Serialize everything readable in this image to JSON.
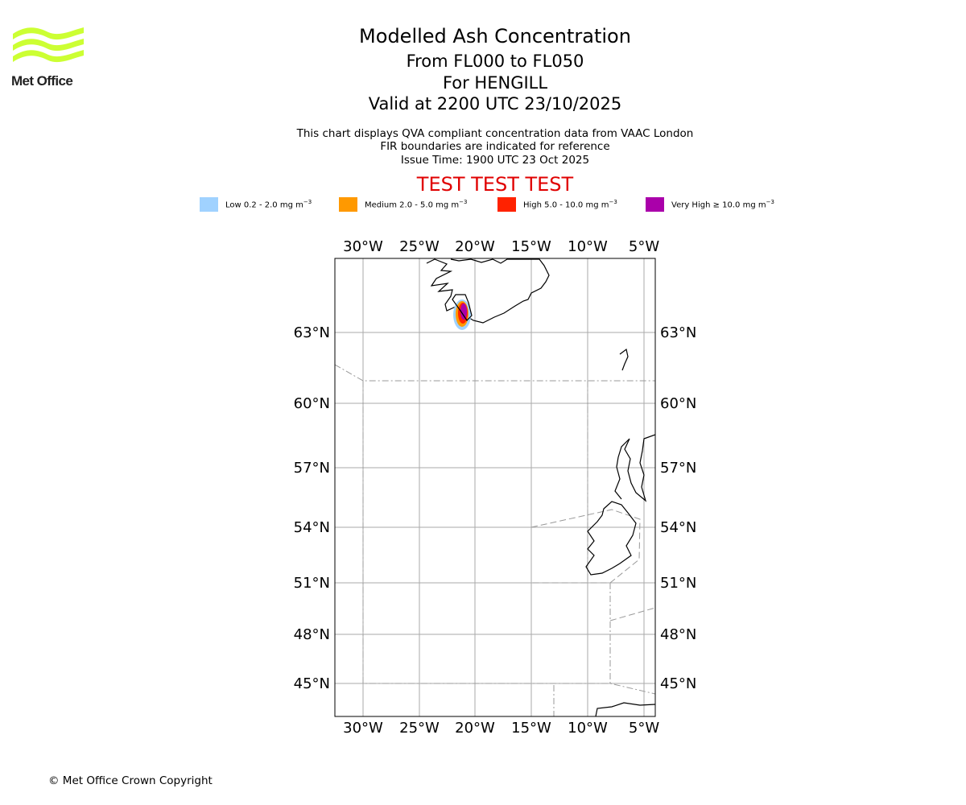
{
  "logo": {
    "text": "Met Office",
    "color": "#ccff33"
  },
  "header": {
    "title": "Modelled Ash Concentration",
    "levels": "From FL000 to FL050",
    "location": "For HENGILL",
    "valid": "Valid at 2200 UTC 23/10/2025"
  },
  "subtitle": {
    "line1": "This chart displays QVA compliant concentration data from VAAC London",
    "line2": "FIR boundaries are indicated for reference",
    "line3": "Issue Time: 1900 UTC 23 Oct 2025"
  },
  "test_banner": {
    "text": "TEST TEST TEST",
    "color": "#e00000"
  },
  "legend": {
    "units": "mg m",
    "exponent": "−3",
    "items": [
      {
        "prefix": "Low 0.2 - 2.0",
        "color": "#a0d2ff"
      },
      {
        "prefix": "Medium 2.0 - 5.0",
        "color": "#ff9900"
      },
      {
        "prefix": "High 5.0 - 10.0",
        "color": "#ff2200"
      },
      {
        "prefix": "Very High  ≥  10.0",
        "color": "#aa00aa"
      }
    ]
  },
  "map": {
    "lon_labels": [
      "30°W",
      "25°W",
      "20°W",
      "15°W",
      "10°W",
      "5°W"
    ],
    "lon_values": [
      -30,
      -25,
      -20,
      -15,
      -10,
      -5
    ],
    "lat_labels": [
      "63°N",
      "60°N",
      "57°N",
      "54°N",
      "51°N",
      "48°N",
      "45°N"
    ],
    "lat_values": [
      63,
      60,
      57,
      54,
      51,
      48,
      45
    ],
    "grid_color": "#aaaaaa",
    "fir_color": "#999999"
  },
  "footer": {
    "copyright": "© Met Office Crown Copyright"
  }
}
